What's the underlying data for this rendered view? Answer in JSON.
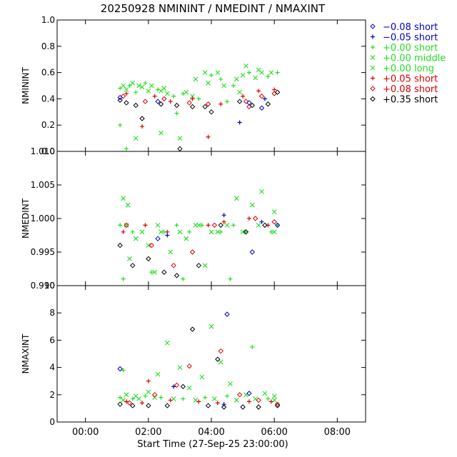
{
  "title": "20250928 NMININT / NMEDINT / NMAXINT",
  "x_axis": {
    "label": "Start Time (27-Sep-25 23:00:00)",
    "ticks": [
      "00:00",
      "02:00",
      "04:00",
      "06:00",
      "08:00"
    ],
    "tick_hours": [
      1,
      3,
      5,
      7,
      9
    ],
    "range_hours": [
      0.1,
      9.9
    ]
  },
  "legend": [
    {
      "symbol": "diamond",
      "label": "−0.08 short",
      "color": "#0000c8"
    },
    {
      "symbol": "plus",
      "label": "−0.05 short",
      "color": "#0000c8"
    },
    {
      "symbol": "plus",
      "label": "+0.00 short",
      "color": "#22dd22"
    },
    {
      "symbol": "cross",
      "label": "+0.00 middle",
      "color": "#22dd22"
    },
    {
      "symbol": "cross",
      "label": "+0.00 long",
      "color": "#22dd22"
    },
    {
      "symbol": "plus",
      "label": "+0.05 short",
      "color": "#dd0000"
    },
    {
      "symbol": "diamond",
      "label": "+0.08 short",
      "color": "#dd0000"
    },
    {
      "symbol": "diamond",
      "label": "+0.35 short",
      "color": "#000000"
    }
  ],
  "chart_data": [
    {
      "type": "scatter",
      "ylabel": "NMININT",
      "ylim": [
        0.0,
        1.0
      ],
      "yticks": [
        "0.0",
        "0.2",
        "0.4",
        "0.6",
        "0.8",
        "1.0"
      ],
      "ytick_values": [
        0.0,
        0.2,
        0.4,
        0.6,
        0.8,
        1.0
      ],
      "series": [
        {
          "name": "+0.00 middle",
          "points": [
            [
              2.2,
              0.5
            ],
            [
              2.5,
              0.52
            ],
            [
              2.8,
              0.49
            ],
            [
              3.1,
              0.5
            ],
            [
              3.4,
              0.46
            ],
            [
              3.6,
              0.44
            ],
            [
              4.2,
              0.45
            ],
            [
              4.5,
              0.55
            ],
            [
              4.8,
              0.6
            ],
            [
              5.2,
              0.6
            ],
            [
              5.8,
              0.55
            ],
            [
              6.1,
              0.65
            ],
            [
              6.5,
              0.62
            ],
            [
              6.9,
              0.6
            ],
            [
              2.6,
              0.1
            ],
            [
              3.4,
              0.14
            ],
            [
              4.0,
              0.1
            ],
            [
              5.9,
              0.45
            ],
            [
              6.4,
              0.56
            ]
          ]
        },
        {
          "name": "+0.00 long",
          "points": [
            [
              2.3,
              0.47
            ],
            [
              2.7,
              0.5
            ],
            [
              3.0,
              0.46
            ],
            [
              3.5,
              0.48
            ],
            [
              4.4,
              0.42
            ],
            [
              4.9,
              0.52
            ],
            [
              5.4,
              0.5
            ],
            [
              6.0,
              0.58
            ],
            [
              6.6,
              0.6
            ]
          ]
        },
        {
          "name": "+0.00 short",
          "points": [
            [
              2.1,
              0.48
            ],
            [
              2.4,
              0.5
            ],
            [
              2.6,
              0.45
            ],
            [
              2.9,
              0.52
            ],
            [
              3.3,
              0.47
            ],
            [
              3.8,
              0.42
            ],
            [
              4.1,
              0.44
            ],
            [
              4.6,
              0.4
            ],
            [
              5.0,
              0.58
            ],
            [
              5.3,
              0.55
            ],
            [
              5.7,
              0.5
            ],
            [
              6.2,
              0.6
            ],
            [
              6.8,
              0.57
            ],
            [
              7.1,
              0.6
            ],
            [
              2.1,
              0.2
            ],
            [
              2.3,
              0.02
            ],
            [
              3.9,
              0.29
            ],
            [
              5.5,
              0.38
            ]
          ]
        },
        {
          "name": "+0.05 short",
          "points": [
            [
              2.3,
              0.44
            ],
            [
              2.8,
              0.19
            ],
            [
              3.2,
              0.42
            ],
            [
              3.7,
              0.38
            ],
            [
              4.4,
              0.4
            ],
            [
              4.9,
              0.11
            ],
            [
              5.3,
              0.36
            ],
            [
              6.0,
              0.42
            ],
            [
              6.5,
              0.46
            ],
            [
              7.0,
              0.47
            ]
          ]
        },
        {
          "name": "+0.08 short",
          "points": [
            [
              2.2,
              0.42
            ],
            [
              2.9,
              0.38
            ],
            [
              3.5,
              0.4
            ],
            [
              4.3,
              0.37
            ],
            [
              4.9,
              0.36
            ],
            [
              6.1,
              0.38
            ],
            [
              6.6,
              0.42
            ],
            [
              6.2,
              0.34
            ],
            [
              7.0,
              0.44
            ]
          ]
        },
        {
          "name": "+0.35 short",
          "points": [
            [
              2.1,
              0.39
            ],
            [
              2.3,
              0.37
            ],
            [
              2.6,
              0.35
            ],
            [
              2.8,
              0.25
            ],
            [
              3.4,
              0.36
            ],
            [
              3.9,
              0.35
            ],
            [
              4.4,
              0.34
            ],
            [
              4.8,
              0.34
            ],
            [
              5.0,
              0.3
            ],
            [
              5.9,
              0.38
            ],
            [
              6.3,
              0.35
            ],
            [
              6.8,
              0.36
            ],
            [
              7.1,
              0.45
            ],
            [
              4.0,
              0.02
            ]
          ]
        },
        {
          "name": "−0.08 short",
          "points": [
            [
              2.1,
              0.41
            ],
            [
              3.3,
              0.38
            ],
            [
              6.2,
              0.37
            ],
            [
              6.6,
              0.33
            ]
          ]
        },
        {
          "name": "−0.05 short",
          "points": [
            [
              5.9,
              0.22
            ],
            [
              6.7,
              0.4
            ]
          ]
        }
      ]
    },
    {
      "type": "scatter",
      "ylabel": "NMEDINT",
      "ylim": [
        0.99,
        1.01
      ],
      "yticks": [
        "0.990",
        "0.995",
        "1.000",
        "1.005",
        "1.010"
      ],
      "ytick_values": [
        0.99,
        0.995,
        1.0,
        1.005,
        1.01
      ],
      "series": [
        {
          "name": "+0.00 middle",
          "points": [
            [
              2.2,
              1.003
            ],
            [
              2.35,
              1.002
            ],
            [
              2.6,
              0.997
            ],
            [
              3.0,
              0.996
            ],
            [
              3.4,
              0.998
            ],
            [
              3.7,
              0.995
            ],
            [
              4.2,
              0.997
            ],
            [
              4.6,
              0.999
            ],
            [
              5.2,
              0.998
            ],
            [
              5.8,
              1.003
            ],
            [
              6.3,
              1.002
            ],
            [
              6.6,
              1.004
            ],
            [
              7.0,
              1.001
            ],
            [
              2.4,
              0.994
            ],
            [
              3.2,
              0.992
            ],
            [
              4.8,
              0.993
            ]
          ]
        },
        {
          "name": "+0.00 long",
          "points": [
            [
              2.3,
              0.999
            ],
            [
              2.8,
              0.998
            ],
            [
              3.3,
              0.999
            ],
            [
              4.0,
              0.998
            ],
            [
              4.5,
              0.999
            ],
            [
              5.0,
              0.998
            ],
            [
              5.5,
              0.999
            ],
            [
              6.0,
              0.998
            ],
            [
              6.5,
              0.999
            ],
            [
              7.0,
              0.998
            ]
          ]
        },
        {
          "name": "+0.00 short",
          "points": [
            [
              2.1,
              0.999
            ],
            [
              2.5,
              0.998
            ],
            [
              2.9,
              0.999
            ],
            [
              3.5,
              0.998
            ],
            [
              3.9,
              0.999
            ],
            [
              4.3,
              0.998
            ],
            [
              4.7,
              0.999
            ],
            [
              5.3,
              0.998
            ],
            [
              5.7,
              0.999
            ],
            [
              6.1,
              0.998
            ],
            [
              6.9,
              0.998
            ],
            [
              7.1,
              0.999
            ],
            [
              2.2,
              0.991
            ],
            [
              3.1,
              0.992
            ],
            [
              4.1,
              0.991
            ],
            [
              5.6,
              0.991
            ]
          ]
        },
        {
          "name": "+0.05 short",
          "points": [
            [
              2.2,
              0.998
            ],
            [
              2.9,
              0.999
            ],
            [
              3.6,
              0.998
            ],
            [
              4.9,
              0.999
            ],
            [
              5.4,
              0.9995
            ],
            [
              6.2,
              1.0
            ],
            [
              6.8,
              0.999
            ]
          ]
        },
        {
          "name": "+0.08 short",
          "points": [
            [
              2.3,
              0.999
            ],
            [
              3.1,
              0.996
            ],
            [
              3.8,
              0.993
            ],
            [
              4.4,
              0.995
            ],
            [
              5.1,
              0.999
            ],
            [
              6.4,
              1.0
            ],
            [
              7.0,
              0.9995
            ]
          ]
        },
        {
          "name": "+0.35 short",
          "points": [
            [
              2.1,
              0.996
            ],
            [
              2.5,
              0.993
            ],
            [
              3.0,
              0.994
            ],
            [
              3.5,
              0.992
            ],
            [
              3.9,
              0.9915
            ],
            [
              4.6,
              0.993
            ],
            [
              5.3,
              0.999
            ],
            [
              6.1,
              0.998
            ],
            [
              6.7,
              0.999
            ]
          ]
        },
        {
          "name": "−0.08 short",
          "points": [
            [
              3.3,
              0.997
            ],
            [
              6.3,
              0.995
            ],
            [
              7.1,
              0.999
            ]
          ]
        },
        {
          "name": "−0.05 short",
          "points": [
            [
              3.6,
              0.9975
            ],
            [
              5.4,
              1.0005
            ],
            [
              6.6,
              0.9995
            ]
          ]
        }
      ]
    },
    {
      "type": "scatter",
      "ylabel": "NMAXINT",
      "ylim": [
        0,
        10
      ],
      "yticks": [
        "0",
        "2",
        "4",
        "6",
        "8",
        "10"
      ],
      "ytick_values": [
        0,
        2,
        4,
        6,
        8,
        10
      ],
      "series": [
        {
          "name": "+0.00 middle",
          "points": [
            [
              2.3,
              2.0
            ],
            [
              2.6,
              1.9
            ],
            [
              3.0,
              2.2
            ],
            [
              3.3,
              3.5
            ],
            [
              3.6,
              5.8
            ],
            [
              4.0,
              4.0
            ],
            [
              4.3,
              2.5
            ],
            [
              4.7,
              3.3
            ],
            [
              5.0,
              7.0
            ],
            [
              5.3,
              4.4
            ],
            [
              5.6,
              2.8
            ],
            [
              6.1,
              2.0
            ],
            [
              6.7,
              2.1
            ],
            [
              7.0,
              1.9
            ]
          ]
        },
        {
          "name": "+0.00 long",
          "points": [
            [
              2.2,
              1.6
            ],
            [
              2.7,
              1.7
            ],
            [
              3.2,
              1.8
            ],
            [
              3.8,
              1.7
            ],
            [
              4.5,
              1.6
            ],
            [
              5.1,
              1.7
            ],
            [
              5.8,
              1.6
            ],
            [
              6.4,
              1.7
            ],
            [
              7.0,
              1.6
            ]
          ]
        },
        {
          "name": "+0.00 short",
          "points": [
            [
              2.1,
              1.8
            ],
            [
              2.5,
              1.7
            ],
            [
              2.9,
              1.9
            ],
            [
              3.4,
              1.8
            ],
            [
              4.1,
              1.7
            ],
            [
              4.8,
              1.8
            ],
            [
              5.5,
              1.9
            ],
            [
              6.3,
              5.5
            ],
            [
              6.8,
              1.7
            ],
            [
              2.2,
              3.8
            ]
          ]
        },
        {
          "name": "+0.05 short",
          "points": [
            [
              2.3,
              1.5
            ],
            [
              2.8,
              1.4
            ],
            [
              3.7,
              1.6
            ],
            [
              4.6,
              1.5
            ],
            [
              5.2,
              1.4
            ],
            [
              6.2,
              1.5
            ],
            [
              6.9,
              1.5
            ],
            [
              3.0,
              3.0
            ]
          ]
        },
        {
          "name": "+0.08 short",
          "points": [
            [
              2.4,
              1.4
            ],
            [
              3.2,
              2.0
            ],
            [
              3.9,
              2.7
            ],
            [
              4.3,
              4.1
            ],
            [
              5.3,
              5.2
            ],
            [
              6.5,
              1.6
            ],
            [
              7.1,
              1.3
            ],
            [
              5.9,
              2.0
            ]
          ]
        },
        {
          "name": "+0.35 short",
          "points": [
            [
              2.1,
              1.3
            ],
            [
              2.5,
              1.2
            ],
            [
              3.0,
              1.2
            ],
            [
              3.6,
              1.2
            ],
            [
              4.1,
              2.6
            ],
            [
              4.4,
              6.8
            ],
            [
              4.9,
              1.2
            ],
            [
              5.4,
              1.1
            ],
            [
              6.0,
              1.1
            ],
            [
              6.5,
              1.1
            ],
            [
              7.1,
              1.2
            ],
            [
              5.2,
              4.6
            ]
          ]
        },
        {
          "name": "−0.08 short",
          "points": [
            [
              2.1,
              3.9
            ],
            [
              5.5,
              7.9
            ],
            [
              6.2,
              2.1
            ]
          ]
        },
        {
          "name": "−0.05 short",
          "points": [
            [
              3.8,
              2.6
            ],
            [
              5.4,
              1.3
            ]
          ]
        }
      ]
    }
  ]
}
